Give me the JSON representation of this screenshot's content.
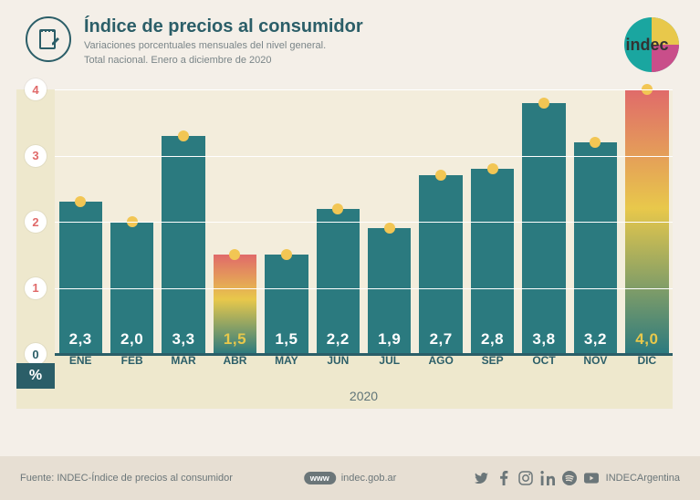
{
  "header": {
    "title": "Índice de precios al consumidor",
    "subtitle_line1": "Variaciones porcentuales mensuales del nivel general.",
    "subtitle_line2": "Total nacional. Enero a diciembre de 2020",
    "logo_text": "indec",
    "logo_colors": {
      "arc1": "#1aa6a0",
      "arc2": "#e8c84b",
      "arc3": "#c94e8a"
    }
  },
  "chart": {
    "type": "bar",
    "ylim": [
      0,
      4
    ],
    "ytick_step": 1,
    "yticks": [
      0,
      1,
      2,
      3,
      4
    ],
    "zero_tick_color": "#2b5e68",
    "nonzero_tick_color": "#e06a6a",
    "grid_color": "#ffffff",
    "baseline_color": "#2b5e68",
    "plot_bg": "#f3eddc",
    "panel_bg": "#eee8cd",
    "pct_symbol": "%",
    "year": "2020",
    "bar_color": "#2b7a7f",
    "bar_label_color": "#ffffff",
    "bar_label_fontsize": 17,
    "marker_color": "#f2c654",
    "highlight_gradient": [
      "#e06a6a",
      "#e8c84b",
      "#2b7a7f"
    ],
    "highlight_label_color": "#e8c84b",
    "months": [
      "ENE",
      "FEB",
      "MAR",
      "ABR",
      "MAY",
      "JUN",
      "JUL",
      "AGO",
      "SEP",
      "OCT",
      "NOV",
      "DIC"
    ],
    "values": [
      2.3,
      2.0,
      3.3,
      1.5,
      1.5,
      2.2,
      1.9,
      2.7,
      2.8,
      3.8,
      3.2,
      4.0
    ],
    "value_labels": [
      "2,3",
      "2,0",
      "3,3",
      "1,5",
      "1,5",
      "2,2",
      "1,9",
      "2,7",
      "2,8",
      "3,8",
      "3,2",
      "4,0"
    ],
    "highlight_indices": [
      3,
      11
    ],
    "bar_width_ratio": 0.84
  },
  "footer": {
    "source": "Fuente: INDEC-Índice de precios al consumidor",
    "url": "indec.gob.ar",
    "handle": "INDECArgentina"
  },
  "colors": {
    "page_bg": "#f4efe8",
    "footer_bg": "#e7dfd3",
    "text_muted": "#6b7679",
    "primary": "#2b5e68"
  }
}
